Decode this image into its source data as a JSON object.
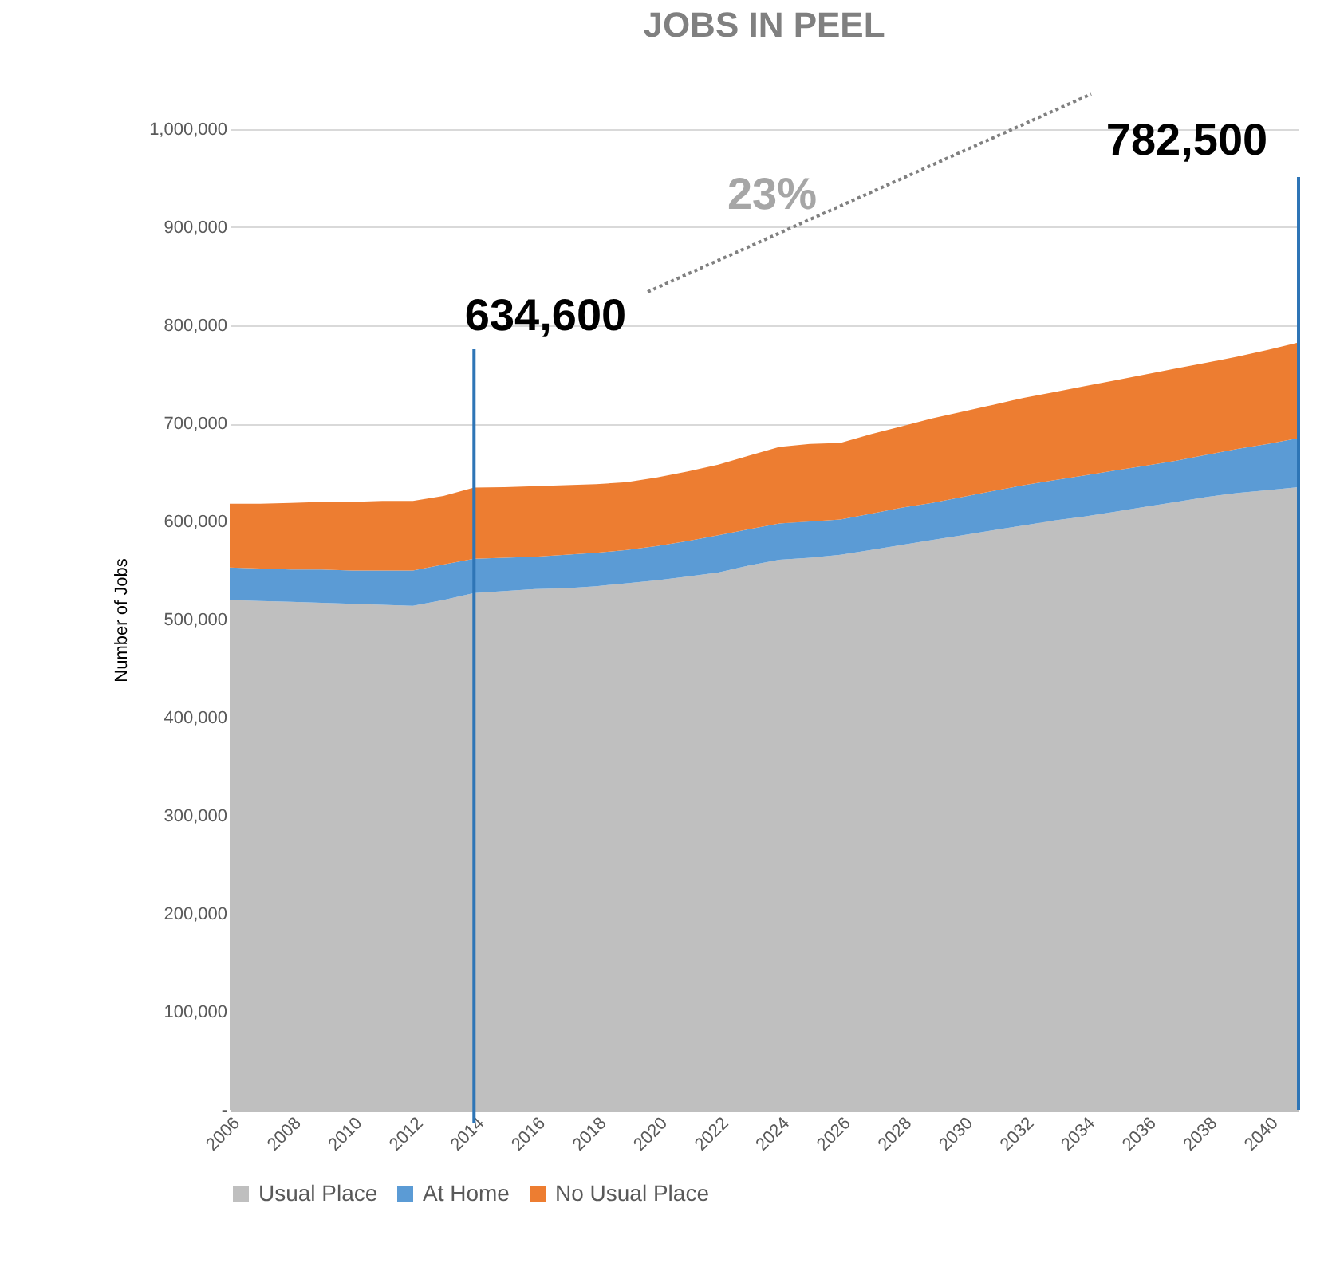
{
  "chart_data": {
    "type": "area",
    "stacked": true,
    "title": "JOBS IN PEEL",
    "ylabel": "Number of Jobs",
    "x": [
      2006,
      2007,
      2008,
      2009,
      2010,
      2011,
      2012,
      2013,
      2014,
      2015,
      2016,
      2017,
      2018,
      2019,
      2020,
      2021,
      2022,
      2023,
      2024,
      2025,
      2026,
      2027,
      2028,
      2029,
      2030,
      2031,
      2032,
      2033,
      2034,
      2035,
      2036,
      2037,
      2038,
      2039,
      2040,
      2041
    ],
    "series": [
      {
        "name": "Usual Place",
        "color": "#bfbfbf",
        "values": [
          520000,
          519000,
          518000,
          517000,
          516000,
          515000,
          514000,
          520000,
          527000,
          529000,
          531000,
          532000,
          534000,
          537000,
          540000,
          544000,
          548000,
          555000,
          561000,
          563000,
          566000,
          571000,
          576000,
          581000,
          586000,
          591000,
          596000,
          601000,
          605000,
          610000,
          615000,
          620000,
          625000,
          629000,
          632000,
          635000
        ]
      },
      {
        "name": "At Home",
        "color": "#5b9bd5",
        "values": [
          33000,
          33000,
          33000,
          34000,
          34000,
          35000,
          36000,
          36000,
          35000,
          34000,
          33000,
          34000,
          34000,
          34000,
          35000,
          36000,
          38000,
          37000,
          37000,
          37000,
          36000,
          37000,
          38000,
          38000,
          39000,
          40000,
          41000,
          41000,
          42000,
          42000,
          42000,
          42000,
          43000,
          45000,
          47000,
          50000
        ]
      },
      {
        "name": "No Usual Place",
        "color": "#ed7d31",
        "values": [
          65000,
          66000,
          68000,
          69000,
          70000,
          71000,
          71000,
          70000,
          72600,
          72000,
          72000,
          71000,
          70000,
          69000,
          70000,
          71000,
          72000,
          75000,
          78000,
          79000,
          78000,
          81000,
          83000,
          86000,
          87000,
          88000,
          89000,
          90000,
          91000,
          92000,
          93000,
          94000,
          94000,
          94000,
          96000,
          97500
        ]
      }
    ],
    "xlim": [
      2006,
      2041
    ],
    "xticks": [
      2006,
      2008,
      2010,
      2012,
      2014,
      2016,
      2018,
      2020,
      2022,
      2024,
      2026,
      2028,
      2030,
      2032,
      2034,
      2036,
      2038,
      2040
    ],
    "ylim": [
      0,
      1000000
    ],
    "yticks": [
      {
        "value": 0,
        "label": "-"
      },
      {
        "value": 100000,
        "label": "100,000"
      },
      {
        "value": 200000,
        "label": "200,000"
      },
      {
        "value": 300000,
        "label": "300,000"
      },
      {
        "value": 400000,
        "label": "400,000"
      },
      {
        "value": 500000,
        "label": "500,000"
      },
      {
        "value": 600000,
        "label": "600,000"
      },
      {
        "value": 700000,
        "label": "700,000"
      },
      {
        "value": 800000,
        "label": "800,000"
      },
      {
        "value": 900000,
        "label": "900,000"
      },
      {
        "value": 1000000,
        "label": "1,000,000"
      }
    ],
    "grid": "y",
    "legend": "bottom",
    "ref_lines": [
      {
        "axis": "x",
        "value": 2014,
        "color": "#2e75b6"
      },
      {
        "axis": "x",
        "value": 2041,
        "color": "#2e75b6"
      }
    ],
    "annotations": [
      "634,600",
      "782,500",
      "23%"
    ]
  }
}
